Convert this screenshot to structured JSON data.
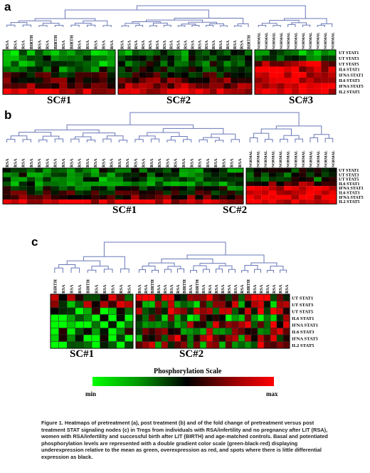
{
  "panels": {
    "a": {
      "letter": "a",
      "clusters": [
        "SC#1",
        "SC#2",
        "SC#3"
      ],
      "rows": [
        "UT STAT1",
        "UT STAT3",
        "UT STAT5",
        "IL6 STAT1",
        "IFNA STAT1",
        "IL6 STAT3",
        "IFNA STAT5",
        "IL2 STAT5"
      ],
      "groups": [
        {
          "columns": [
            "RSA",
            "RSA",
            "RSA",
            "BIRTH",
            "RSA",
            "RSA",
            "BIRTH",
            "RSA",
            "BIRTH",
            "RSA",
            "RSA",
            "RSA",
            "RSA",
            "RSA"
          ]
        },
        {
          "columns": [
            "RSA",
            "RSA",
            "RSA",
            "RSA",
            "RSA",
            "RSA",
            "RSA",
            "RSA",
            "RSA",
            "RSA",
            "RSA",
            "RSA",
            "RSA",
            "RSA",
            "RSA",
            "RSA",
            "RSA",
            "RSA",
            "BIRTH"
          ]
        },
        {
          "columns": [
            "NORMAL",
            "NORMAL",
            "NORMAL",
            "NORMAL",
            "NORMAL",
            "NORMAL",
            "NORMAL",
            "NORMAL",
            "NORMAL",
            "NORMAL",
            "NORMAL"
          ]
        }
      ]
    },
    "b": {
      "letter": "b",
      "clusters": [
        "SC#1",
        "SC#2"
      ],
      "rows": [
        "UT STAT1",
        "UT STAT3",
        "UT STAT5",
        "IL6 STAT1",
        "IFNA STAT1",
        "IL6 STAT3",
        "IFNA STAT5",
        "IL2 STAT5"
      ],
      "groups": [
        {
          "columns": [
            "RSA",
            "RSA",
            "RSA",
            "RSA",
            "RSA",
            "RSA",
            "RSA",
            "RSA",
            "RSA",
            "RSA",
            "RSA",
            "RSA",
            "RSA",
            "RSA",
            "RSA",
            "RSA",
            "RSA",
            "RSA",
            "RSA",
            "RSA",
            "RSA",
            "RSA",
            "RSA",
            "RSA",
            "RSA",
            "RSA",
            "RSA",
            "RSA",
            "RSA",
            "RSA"
          ]
        },
        {
          "columns": [
            "NORMAL",
            "NORMAL",
            "NORMAL",
            "NORMAL",
            "NORMAL",
            "NORMAL",
            "NORMAL",
            "NORMAL",
            "NORMAL",
            "NORMAL",
            "NORMAL",
            "NORMAL"
          ]
        }
      ]
    },
    "c": {
      "letter": "c",
      "clusters": [
        "SC#1",
        "SC#2"
      ],
      "rows": [
        "UT STAT1",
        "UT STAT3",
        "UT STAT5",
        "IL6 STAT1",
        "IFNA STAT1",
        "IL6 STAT3",
        "IFNA STAT5",
        "IL2 STAT5"
      ],
      "groups": [
        {
          "columns": [
            "BIRTH",
            "RSA",
            "RSA",
            "RSA",
            "BIRTH",
            "RSA",
            "RSA",
            "RSA",
            "RSA",
            "RSA"
          ]
        },
        {
          "columns": [
            "RSA",
            "RSA",
            "BIRTH",
            "RSA",
            "RSA",
            "RSA",
            "RSA",
            "BIRTH",
            "RSA",
            "BIRTH",
            "RSA",
            "RSA",
            "RSA",
            "RSA",
            "RSA",
            "RSA",
            "RSA",
            "BIRTH",
            "RSA",
            "RSA",
            "RSA",
            "RSA",
            "RSA",
            "RSA"
          ]
        }
      ]
    }
  },
  "scale": {
    "title": "Phosphorylation Scale",
    "min_label": "min",
    "max_label": "max",
    "colors": [
      "#00ff00",
      "#000000",
      "#ff0000"
    ]
  },
  "caption": {
    "lead": "Figure 1.",
    "text": "Heatmaps of pretreatment (a), post treatment (b) and of the fold change of pretreatment versus post treatment STAT signaling nodes (c) in Tregs from individuals with RSA/infertility and no pregnancy after LIT (RSA), women with RSA/infertility and successful birth after LIT (BIRTH) and age-matched controls. Basal and potentiated phosphorylation levels are represented with a double gradient color scale (green-black-red) displaying underexpression relative to the mean as green, overexpression as red, and spots where there is little differential expression as black."
  }
}
